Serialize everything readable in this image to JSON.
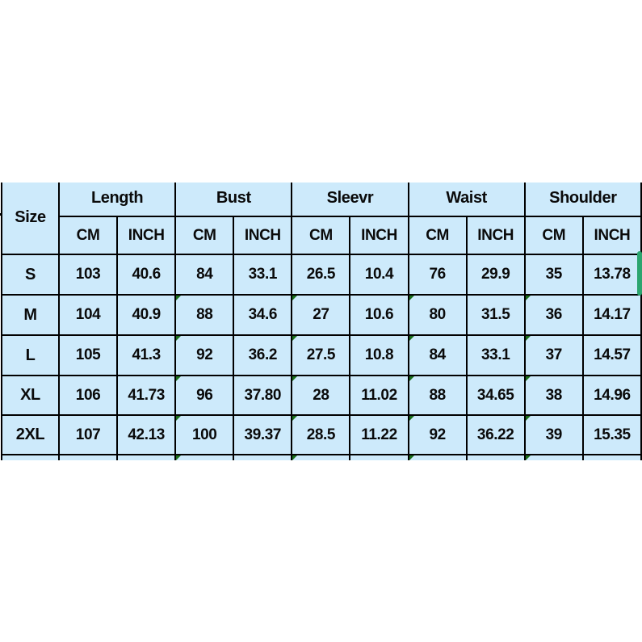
{
  "page": {
    "background": "#ffffff",
    "description": "Garment size chart table centered vertically on white background, clipped mid-cell at top and bottom edges"
  },
  "table": {
    "corner_label": "Size",
    "groups": [
      "Length",
      "Bust",
      "Sleevr",
      "Waist",
      "Shoulder"
    ],
    "unit_labels": [
      "CM",
      "INCH"
    ],
    "rows": [
      {
        "size": "S",
        "cells": [
          "103",
          "40.6",
          "84",
          "33.1",
          "26.5",
          "10.4",
          "76",
          "29.9",
          "35",
          "13.78"
        ]
      },
      {
        "size": "M",
        "cells": [
          "104",
          "40.9",
          "88",
          "34.6",
          "27",
          "10.6",
          "80",
          "31.5",
          "36",
          "14.17"
        ]
      },
      {
        "size": "L",
        "cells": [
          "105",
          "41.3",
          "92",
          "36.2",
          "27.5",
          "10.8",
          "84",
          "33.1",
          "37",
          "14.57"
        ]
      },
      {
        "size": "XL",
        "cells": [
          "106",
          "41.73",
          "96",
          "37.80",
          "28",
          "11.02",
          "88",
          "34.65",
          "38",
          "14.96"
        ]
      },
      {
        "size": "2XL",
        "cells": [
          "107",
          "42.13",
          "100",
          "39.37",
          "28.5",
          "11.22",
          "92",
          "36.22",
          "39",
          "15.35"
        ]
      }
    ],
    "partial_bottom_row": true,
    "error_marker_value_indices": [
      2,
      4,
      6,
      8
    ],
    "error_marker_from_row_index": 1,
    "colors": {
      "cell_bg": "#cdeafb",
      "border": "#000000",
      "text": "#0a0a0a",
      "error_marker": "#1a6e1a",
      "selection_bar": "#2ba56f"
    }
  },
  "chart_data": {
    "type": "table",
    "title": "Size chart",
    "columns": [
      "Size",
      "Length CM",
      "Length INCH",
      "Bust CM",
      "Bust INCH",
      "Sleevr CM",
      "Sleevr INCH",
      "Waist CM",
      "Waist INCH",
      "Shoulder CM",
      "Shoulder INCH"
    ],
    "rows": [
      [
        "S",
        103,
        40.6,
        84,
        33.1,
        26.5,
        10.4,
        76,
        29.9,
        35,
        13.78
      ],
      [
        "M",
        104,
        40.9,
        88,
        34.6,
        27,
        10.6,
        80,
        31.5,
        36,
        14.17
      ],
      [
        "L",
        105,
        41.3,
        92,
        36.2,
        27.5,
        10.8,
        84,
        33.1,
        37,
        14.57
      ],
      [
        "XL",
        106,
        41.73,
        96,
        37.8,
        28,
        11.02,
        88,
        34.65,
        38,
        14.96
      ],
      [
        "2XL",
        107,
        42.13,
        100,
        39.37,
        28.5,
        11.22,
        92,
        36.22,
        39,
        15.35
      ]
    ],
    "notes": "Column header 'Sleevr' spelled as printed. Small green corner markers on CM cells of Bust/Sleevr/Waist/Shoulder for rows M through 2XL and the clipped partial bottom row."
  }
}
